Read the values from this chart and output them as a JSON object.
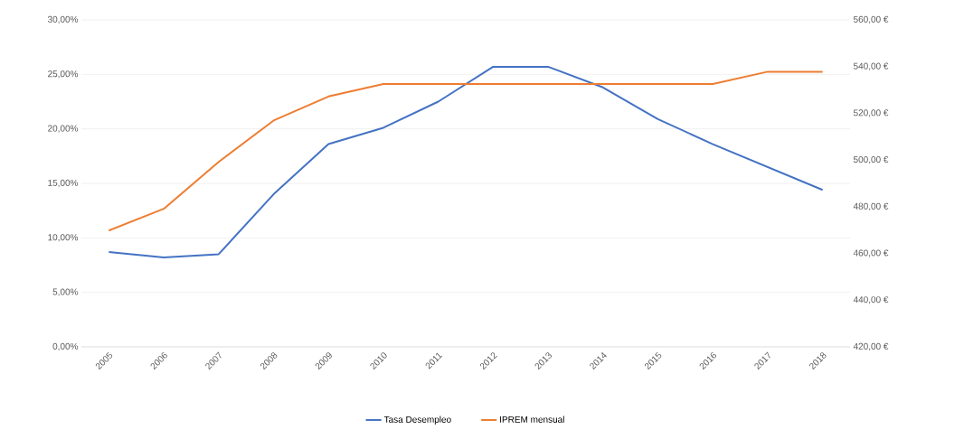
{
  "chart_data": {
    "type": "line",
    "categories": [
      "2005",
      "2006",
      "2007",
      "2008",
      "2009",
      "2010",
      "2011",
      "2012",
      "2013",
      "2014",
      "2015",
      "2016",
      "2017",
      "2018"
    ],
    "series": [
      {
        "name": "Tasa Desempleo",
        "color": "#4472c4",
        "values": [
          8.7,
          8.2,
          8.5,
          14.0,
          18.6,
          20.1,
          22.5,
          25.7,
          25.7,
          23.8,
          20.9,
          18.6,
          16.5,
          14.4
        ]
      },
      {
        "name": "IPREM mensual",
        "color": "#ed7d31",
        "axis": "y2",
        "values": [
          469.8,
          479.1,
          499.2,
          516.9,
          527.2,
          532.5,
          532.5,
          532.5,
          532.5,
          532.5,
          532.5,
          532.5,
          537.8,
          537.8
        ]
      }
    ],
    "ylim": [
      0,
      30
    ],
    "yticks": [
      {
        "value": 0,
        "label": "0,00%"
      },
      {
        "value": 5,
        "label": "5,00%"
      },
      {
        "value": 10,
        "label": "10,00%"
      },
      {
        "value": 15,
        "label": "15,00%"
      },
      {
        "value": 20,
        "label": "20,00%"
      },
      {
        "value": 25,
        "label": "25,00%"
      },
      {
        "value": 30,
        "label": "30,00%"
      }
    ],
    "y2lim": [
      420,
      560
    ],
    "y2ticks": [
      {
        "value": 420,
        "label": "420,00 €"
      },
      {
        "value": 440,
        "label": "440,00 €"
      },
      {
        "value": 460,
        "label": "460,00 €"
      },
      {
        "value": 480,
        "label": "480,00 €"
      },
      {
        "value": 500,
        "label": "500,00 €"
      },
      {
        "value": 520,
        "label": "520,00 €"
      },
      {
        "value": 540,
        "label": "540,00 €"
      },
      {
        "value": 560,
        "label": "560,00 €"
      }
    ],
    "grid": "y",
    "legend": "bottom",
    "marker": "none",
    "line_style": "solid"
  }
}
